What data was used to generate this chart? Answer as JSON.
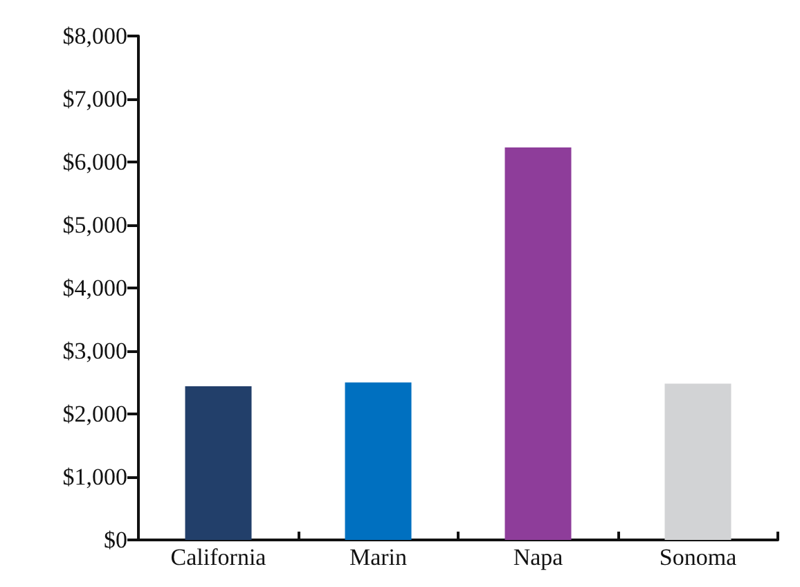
{
  "chart_data": {
    "type": "bar",
    "categories": [
      "California",
      "Marin",
      "Napa",
      "Sonoma"
    ],
    "values": [
      2440,
      2500,
      6230,
      2480
    ],
    "colors": [
      "#223f6a",
      "#0070c0",
      "#8e3d9a",
      "#d2d3d5"
    ],
    "ylim": [
      0,
      8000
    ],
    "yticks": [
      {
        "value": 0,
        "label": "$0"
      },
      {
        "value": 1000,
        "label": "$1,000"
      },
      {
        "value": 2000,
        "label": "$2,000"
      },
      {
        "value": 3000,
        "label": "$3,000"
      },
      {
        "value": 4000,
        "label": "$4,000"
      },
      {
        "value": 5000,
        "label": "$5,000"
      },
      {
        "value": 6000,
        "label": "$6,000"
      },
      {
        "value": 7000,
        "label": "$7,000"
      },
      {
        "value": 8000,
        "label": "$8,000"
      }
    ],
    "grid": false
  }
}
